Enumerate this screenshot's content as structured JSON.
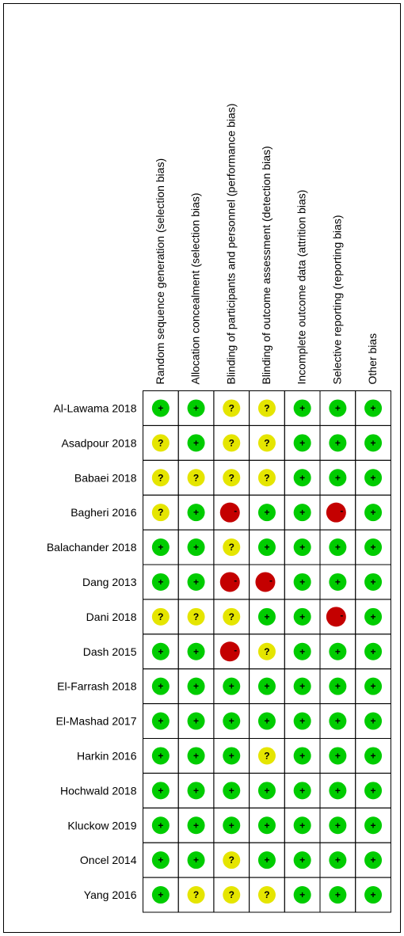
{
  "table": {
    "columns": [
      "Random sequence generation (selection bias)",
      "Allocation concealment (selection bias)",
      "Blinding of participants and personnel (performance bias)",
      "Blinding of outcome assessment (detection bias)",
      "Incomplete outcome data (attrition bias)",
      "Selective reporting (reporting bias)",
      "Other bias"
    ],
    "rows": [
      {
        "study": "Al-Lawama  2018",
        "cells": [
          "+",
          "+",
          "?",
          "?",
          "+",
          "+",
          "+"
        ]
      },
      {
        "study": "Asadpour  2018",
        "cells": [
          "?",
          "+",
          "?",
          "?",
          "+",
          "+",
          "+"
        ]
      },
      {
        "study": "Babaei  2018",
        "cells": [
          "?",
          "?",
          "?",
          "?",
          "+",
          "+",
          "+"
        ]
      },
      {
        "study": "Bagheri  2016",
        "cells": [
          "?",
          "+",
          "-",
          "+",
          "+",
          "-",
          "+"
        ]
      },
      {
        "study": "Balachander  2018",
        "cells": [
          "+",
          "+",
          "?",
          "+",
          "+",
          "+",
          "+"
        ]
      },
      {
        "study": "Dang  2013",
        "cells": [
          "+",
          "+",
          "-",
          "-",
          "+",
          "+",
          "+"
        ]
      },
      {
        "study": "Dani  2018",
        "cells": [
          "?",
          "?",
          "?",
          "+",
          "+",
          "-",
          "+"
        ]
      },
      {
        "study": "Dash  2015",
        "cells": [
          "+",
          "+",
          "-",
          "?",
          "+",
          "+",
          "+"
        ]
      },
      {
        "study": "El-Farrash  2018",
        "cells": [
          "+",
          "+",
          "+",
          "+",
          "+",
          "+",
          "+"
        ]
      },
      {
        "study": "El-Mashad  2017",
        "cells": [
          "+",
          "+",
          "+",
          "+",
          "+",
          "+",
          "+"
        ]
      },
      {
        "study": "Harkin  2016",
        "cells": [
          "+",
          "+",
          "+",
          "?",
          "+",
          "+",
          "+"
        ]
      },
      {
        "study": "Hochwald  2018",
        "cells": [
          "+",
          "+",
          "+",
          "+",
          "+",
          "+",
          "+"
        ]
      },
      {
        "study": "Kluckow  2019",
        "cells": [
          "+",
          "+",
          "+",
          "+",
          "+",
          "+",
          "+"
        ]
      },
      {
        "study": "Oncel  2014",
        "cells": [
          "+",
          "+",
          "?",
          "+",
          "+",
          "+",
          "+"
        ]
      },
      {
        "study": "Yang  2016",
        "cells": [
          "+",
          "?",
          "?",
          "?",
          "+",
          "+",
          "+"
        ]
      }
    ]
  },
  "colors": {
    "+": "#00cc00",
    "?": "#e5e500",
    "-": "#c40000"
  }
}
